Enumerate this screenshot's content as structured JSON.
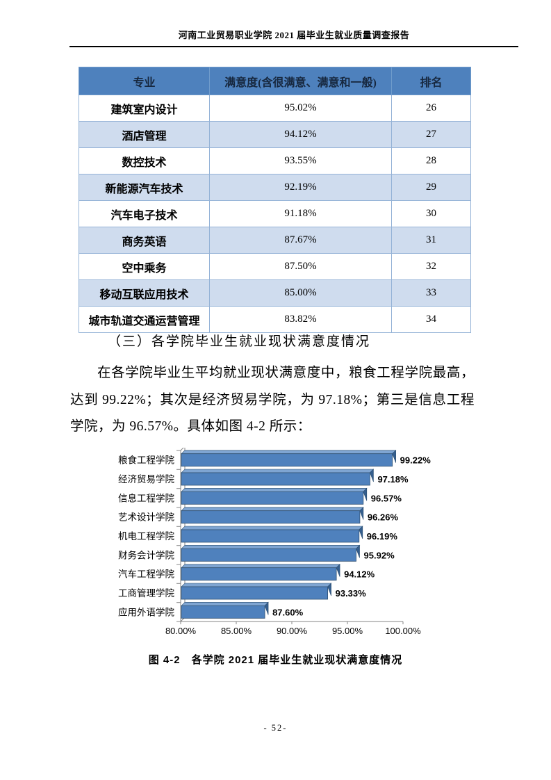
{
  "page": {
    "header_title": "河南工业贸易职业学院 2021 届毕业生就业质量调查报告",
    "page_number": "- 52-"
  },
  "table": {
    "columns": {
      "major": "专业",
      "satisfaction": "满意度(含很满意、满意和一般)",
      "rank": "排名"
    },
    "rows": [
      {
        "major": "建筑室内设计",
        "satisfaction": "95.02%",
        "rank": "26"
      },
      {
        "major": "酒店管理",
        "satisfaction": "94.12%",
        "rank": "27"
      },
      {
        "major": "数控技术",
        "satisfaction": "93.55%",
        "rank": "28"
      },
      {
        "major": "新能源汽车技术",
        "satisfaction": "92.19%",
        "rank": "29"
      },
      {
        "major": "汽车电子技术",
        "satisfaction": "91.18%",
        "rank": "30"
      },
      {
        "major": "商务英语",
        "satisfaction": "87.67%",
        "rank": "31"
      },
      {
        "major": "空中乘务",
        "satisfaction": "87.50%",
        "rank": "32"
      },
      {
        "major": "移动互联应用技术",
        "satisfaction": "85.00%",
        "rank": "33"
      },
      {
        "major": "城市轨道交通运营管理",
        "satisfaction": "83.82%",
        "rank": "34"
      }
    ]
  },
  "section": {
    "heading": "（三）各学院毕业生就业现状满意度情况",
    "paragraph": "在各学院毕业生平均就业现状满意度中，粮食工程学院最高，达到 99.22%；其次是经济贸易学院，为 97.18%；第三是信息工程学院，为 96.57%。具体如图 4-2 所示："
  },
  "figure": {
    "caption": "图 4-2　各学院 2021 届毕业生就业现状满意度情况"
  },
  "chart_data": {
    "type": "bar",
    "orientation": "horizontal",
    "title": "",
    "xlabel": "",
    "ylabel": "",
    "categories": [
      "粮食工程学院",
      "经济贸易学院",
      "信息工程学院",
      "艺术设计学院",
      "机电工程学院",
      "财务会计学院",
      "汽车工程学院",
      "工商管理学院",
      "应用外语学院"
    ],
    "values": [
      99.22,
      97.18,
      96.57,
      96.26,
      96.19,
      95.92,
      94.12,
      93.33,
      87.6
    ],
    "value_labels": [
      "99.22%",
      "97.18%",
      "96.57%",
      "96.26%",
      "96.19%",
      "95.92%",
      "94.12%",
      "93.33%",
      "87.60%"
    ],
    "xlim": [
      80,
      100
    ],
    "x_ticks": [
      "80.00%",
      "85.00%",
      "90.00%",
      "95.00%",
      "100.00%"
    ],
    "grid": false,
    "legend": "none",
    "style": "3d-horizontal-bar",
    "colors": {
      "bar": "#4F81BD",
      "bar_top": "#7FA5D2",
      "bar_cap": "#345E8E",
      "bar_edge": "#2E5072",
      "axis": "#858585",
      "label_text": "#000000"
    }
  }
}
